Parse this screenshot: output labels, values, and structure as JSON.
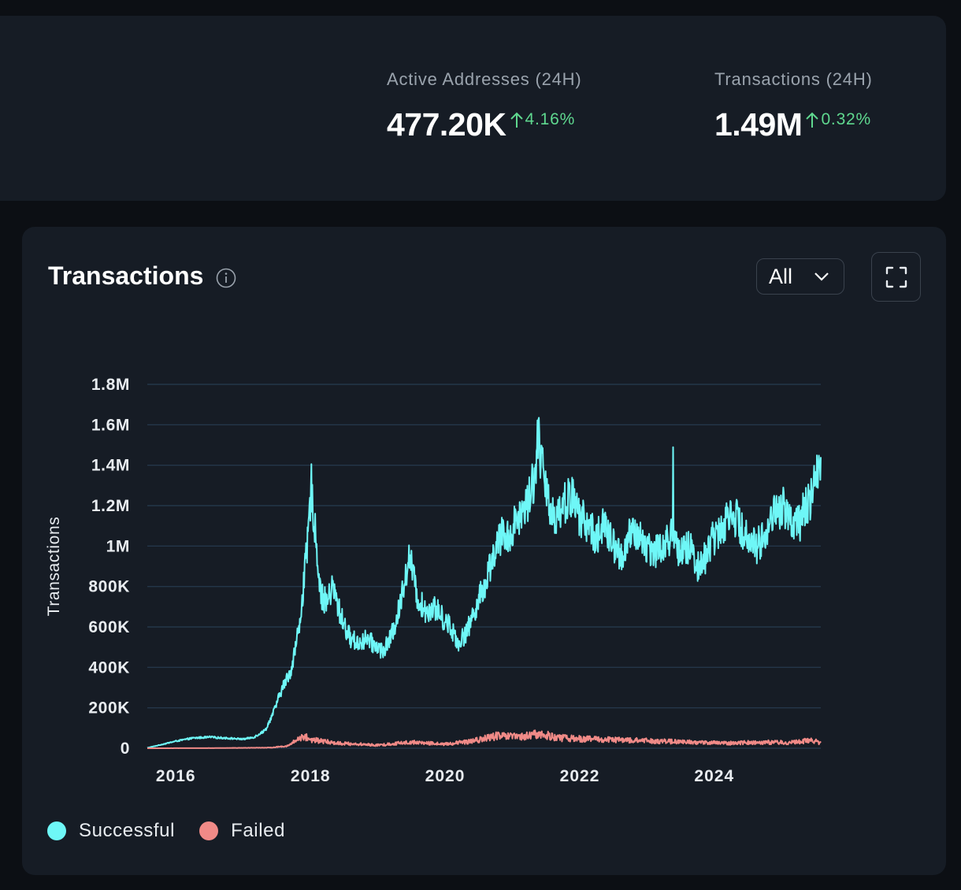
{
  "stats": [
    {
      "label": "Active Addresses (24H)",
      "value": "477.20K",
      "change": "4.16%"
    },
    {
      "label": "Transactions (24H)",
      "value": "1.49M",
      "change": "0.32%"
    }
  ],
  "chart_card": {
    "title": "Transactions",
    "range_label": "All"
  },
  "colors": {
    "successful": "#6ef7f7",
    "failed": "#f08a87",
    "positive_change": "#5fd88f",
    "card_bg": "#161c25",
    "page_bg": "#0c0f14"
  },
  "icons": [
    "info-icon",
    "chevron-down-icon",
    "fullscreen-icon",
    "arrow-up-icon"
  ],
  "chart_data": {
    "type": "line",
    "title": "Transactions",
    "xlabel": "",
    "ylabel": "Transactions",
    "x_ticks": [
      "2016",
      "2018",
      "2020",
      "2022",
      "2024"
    ],
    "y_ticks": [
      "0",
      "200K",
      "400K",
      "600K",
      "800K",
      "1M",
      "1.2M",
      "1.4M",
      "1.6M",
      "1.8M"
    ],
    "ylim": [
      0,
      1800000
    ],
    "xlim": [
      "2015-07-30",
      "2025-08-01"
    ],
    "grid": true,
    "legend_position": "bottom-left",
    "series": [
      {
        "name": "Successful",
        "color": "#6ef7f7",
        "x": [
          "2015-07-30",
          "2015-10-01",
          "2016-01-01",
          "2016-04-01",
          "2016-07-01",
          "2016-10-01",
          "2017-01-01",
          "2017-03-01",
          "2017-05-01",
          "2017-06-15",
          "2017-08-01",
          "2017-09-15",
          "2017-11-01",
          "2017-12-15",
          "2018-01-05",
          "2018-02-01",
          "2018-03-01",
          "2018-04-01",
          "2018-05-01",
          "2018-06-15",
          "2018-08-01",
          "2018-09-15",
          "2018-11-01",
          "2018-12-15",
          "2019-02-01",
          "2019-03-15",
          "2019-05-01",
          "2019-06-01",
          "2019-06-25",
          "2019-08-01",
          "2019-09-15",
          "2019-11-01",
          "2019-12-15",
          "2020-02-01",
          "2020-03-15",
          "2020-05-01",
          "2020-06-15",
          "2020-08-01",
          "2020-09-15",
          "2020-11-01",
          "2020-12-15",
          "2021-02-01",
          "2021-03-15",
          "2021-05-01",
          "2021-05-20",
          "2021-07-01",
          "2021-08-15",
          "2021-10-01",
          "2021-11-15",
          "2022-01-01",
          "2022-02-15",
          "2022-04-01",
          "2022-05-15",
          "2022-07-01",
          "2022-08-15",
          "2022-10-01",
          "2022-11-15",
          "2023-01-01",
          "2023-02-15",
          "2023-04-01",
          "2023-05-15",
          "2023-07-01",
          "2023-08-15",
          "2023-10-01",
          "2023-11-15",
          "2024-01-01",
          "2024-02-15",
          "2024-04-01",
          "2024-05-15",
          "2024-07-01",
          "2024-08-15",
          "2024-10-01",
          "2024-11-15",
          "2025-01-01",
          "2025-02-15",
          "2025-04-01",
          "2025-05-15",
          "2025-06-15",
          "2025-07-15",
          "2025-08-01"
        ],
        "values": [
          2000,
          15000,
          35000,
          50000,
          55000,
          50000,
          45000,
          55000,
          90000,
          180000,
          300000,
          380000,
          600000,
          1000000,
          1300000,
          1000000,
          750000,
          720000,
          800000,
          650000,
          550000,
          520000,
          540000,
          510000,
          480000,
          550000,
          700000,
          870000,
          950000,
          750000,
          680000,
          700000,
          650000,
          600000,
          520000,
          580000,
          700000,
          800000,
          950000,
          1050000,
          1050000,
          1150000,
          1200000,
          1350000,
          1550000,
          1250000,
          1150000,
          1200000,
          1250000,
          1150000,
          1100000,
          1050000,
          1100000,
          1000000,
          950000,
          1050000,
          1050000,
          1000000,
          980000,
          1000000,
          1050000,
          950000,
          1000000,
          900000,
          950000,
          1050000,
          1100000,
          1200000,
          1100000,
          1050000,
          1000000,
          1050000,
          1150000,
          1200000,
          1150000,
          1100000,
          1200000,
          1250000,
          1350000,
          1450000
        ]
      },
      {
        "name": "Failed",
        "color": "#f08a87",
        "x": [
          "2015-07-30",
          "2016-07-01",
          "2017-06-01",
          "2017-09-01",
          "2017-11-20",
          "2018-01-15",
          "2018-06-01",
          "2019-01-01",
          "2019-06-25",
          "2020-01-01",
          "2020-06-01",
          "2020-10-01",
          "2021-03-01",
          "2021-05-15",
          "2021-10-01",
          "2022-03-01",
          "2022-09-01",
          "2023-03-01",
          "2023-09-01",
          "2024-03-01",
          "2024-09-01",
          "2025-03-01",
          "2025-06-15",
          "2025-08-01"
        ],
        "values": [
          0,
          500,
          3000,
          12000,
          60000,
          40000,
          25000,
          15000,
          30000,
          20000,
          35000,
          60000,
          55000,
          70000,
          50000,
          45000,
          40000,
          35000,
          30000,
          25000,
          30000,
          28000,
          40000,
          25000
        ]
      }
    ]
  },
  "legend": {
    "successful": "Successful",
    "failed": "Failed"
  }
}
